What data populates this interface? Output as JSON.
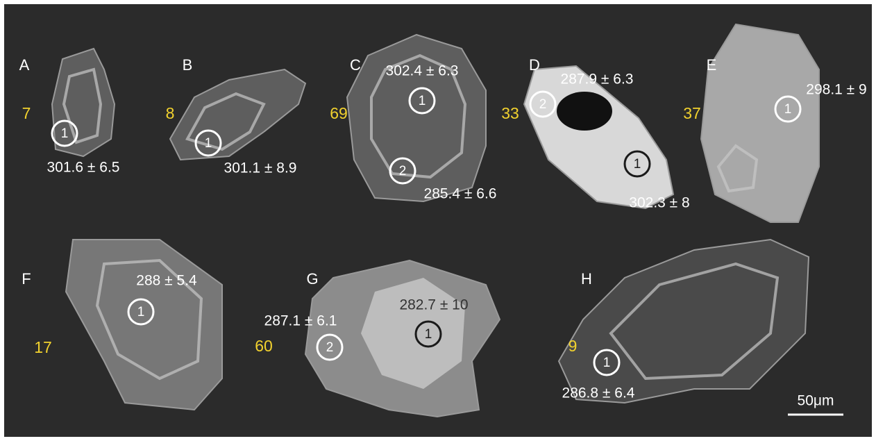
{
  "panels": [
    {
      "label": "A",
      "grain_no": "7",
      "spots": [
        {
          "id": "1",
          "age": "301.6 ± 6.5"
        }
      ]
    },
    {
      "label": "B",
      "grain_no": "8",
      "spots": [
        {
          "id": "1",
          "age": "301.1 ± 8.9"
        }
      ]
    },
    {
      "label": "C",
      "grain_no": "69",
      "spots": [
        {
          "id": "1",
          "age": "302.4 ± 6.3"
        },
        {
          "id": "2",
          "age": "285.4 ± 6.6"
        }
      ]
    },
    {
      "label": "D",
      "grain_no": "33",
      "spots": [
        {
          "id": "1",
          "age": "302.3 ± 8"
        },
        {
          "id": "2",
          "age": "287.9 ± 6.3"
        }
      ]
    },
    {
      "label": "E",
      "grain_no": "37",
      "spots": [
        {
          "id": "1",
          "age": "298.1 ± 9"
        }
      ]
    },
    {
      "label": "F",
      "grain_no": "17",
      "spots": [
        {
          "id": "1",
          "age": "288 ± 5.4"
        }
      ]
    },
    {
      "label": "G",
      "grain_no": "60",
      "spots": [
        {
          "id": "1",
          "age": "282.7 ± 10"
        },
        {
          "id": "2",
          "age": "287.1 ± 6.1"
        }
      ]
    },
    {
      "label": "H",
      "grain_no": "9",
      "spots": [
        {
          "id": "1",
          "age": "286.8 ± 6.4"
        }
      ]
    }
  ],
  "scale_bar": "50μm"
}
